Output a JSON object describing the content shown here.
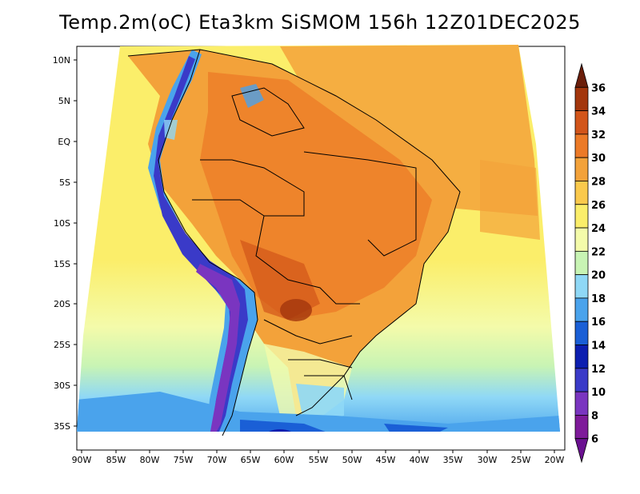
{
  "map": {
    "title": "Temp.2m(oC) Eta3km SiSMOM 156h 12Z01DEC2025",
    "lat_labels": [
      "10N",
      "5N",
      "EQ",
      "5S",
      "10S",
      "15S",
      "20S",
      "25S",
      "30S",
      "35S"
    ],
    "lon_labels": [
      "90W",
      "85W",
      "80W",
      "75W",
      "70W",
      "65W",
      "60W",
      "55W",
      "50W",
      "45W",
      "40W",
      "35W",
      "30W",
      "25W",
      "20W"
    ]
  },
  "colorbar": {
    "labels": [
      "36",
      "34",
      "32",
      "30",
      "28",
      "26",
      "24",
      "22",
      "20",
      "18",
      "16",
      "14",
      "12",
      "10",
      "8",
      "6"
    ],
    "colors": [
      "#6b1e0a",
      "#a3360c",
      "#d2551a",
      "#ec7a27",
      "#f3a23a",
      "#fac94c",
      "#fbee6a",
      "#f4fbaa",
      "#c8f4b4",
      "#8fd8f6",
      "#4aa3ec",
      "#1a5fd6",
      "#0c1eb0",
      "#3a3ac8",
      "#7a35c0",
      "#7e1a9a",
      "#6a1090"
    ]
  }
}
